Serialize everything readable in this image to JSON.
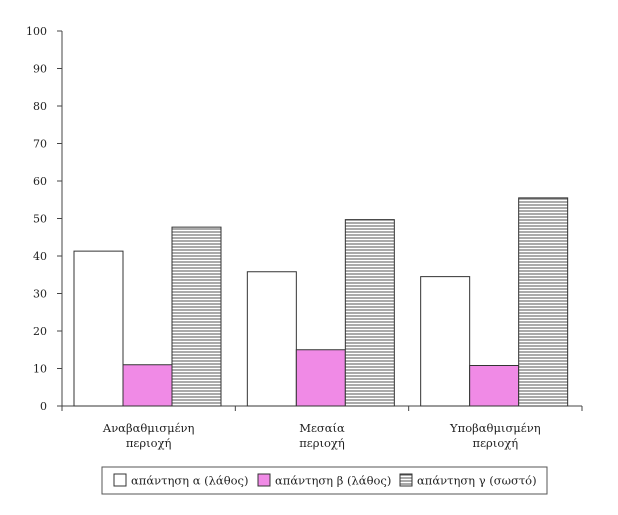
{
  "chart_data": {
    "type": "bar",
    "categories": [
      [
        "Αναβαθμισμένη",
        "περιοχή"
      ],
      [
        "Μεσαία",
        "περιοχή"
      ],
      [
        "Υποβαθμισμένη",
        "περιοχή"
      ]
    ],
    "series": [
      {
        "name": "απάντηση α (λάθος)",
        "values": [
          41.3,
          35.8,
          34.5
        ],
        "fill": "#ffffff",
        "pattern": "none"
      },
      {
        "name": "απάντηση β (λάθος)",
        "values": [
          11.0,
          15.0,
          10.8
        ],
        "fill": "#f08ae6",
        "pattern": "none"
      },
      {
        "name": "απάντηση γ (σωστό)",
        "values": [
          47.7,
          49.7,
          55.5
        ],
        "fill": "#ffffff",
        "pattern": "horizontal-lines"
      }
    ],
    "ylim": [
      0,
      100
    ],
    "yticks": [
      "0",
      "10",
      "20",
      "30",
      "40",
      "50",
      "60",
      "70",
      "80",
      "90",
      "100"
    ],
    "legend_placement": "bottom",
    "grid": false,
    "colors": {
      "axis": "#444444",
      "bar_outline": "#333333",
      "hatch": "#555555"
    }
  }
}
